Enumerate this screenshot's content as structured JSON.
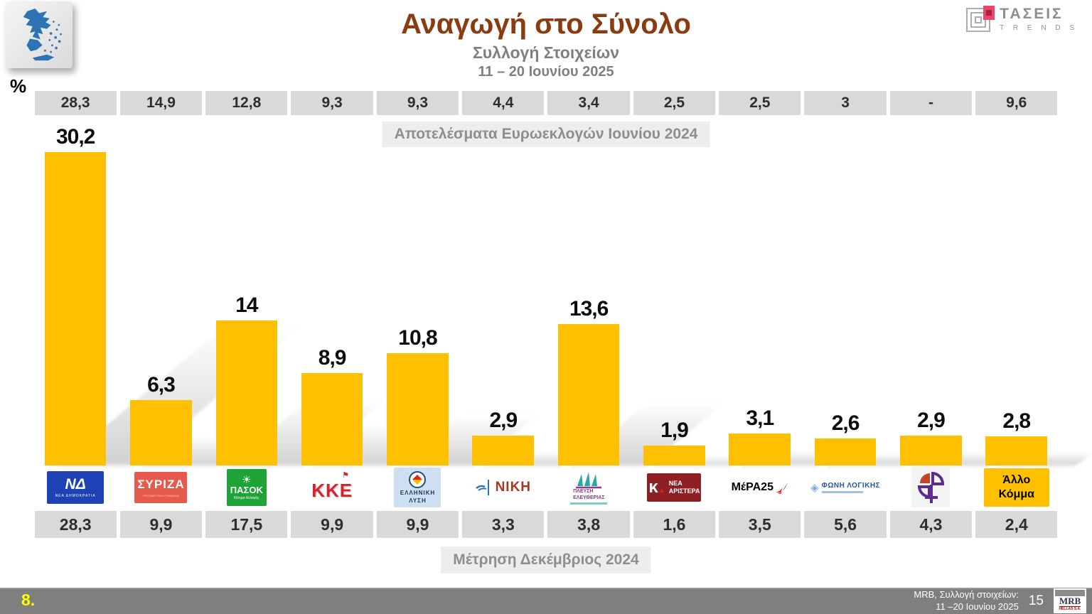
{
  "header": {
    "title": "Αναγωγή στο Σύνολο",
    "subtitle": "Συλλογή Στοιχείων",
    "date_range": "11 – 20 Ιουνίου 2025",
    "brand": {
      "name": "ΤΑΣΕΙΣ",
      "sub": "T R E N D S"
    }
  },
  "percent_label": "%",
  "annotations": {
    "top_row_label": "Αποτελέσματα Ευρωεκλογών Ιουνίου 2024",
    "bottom_row_label": "Μέτρηση Δεκέμβριος 2024"
  },
  "chart_data": {
    "type": "bar",
    "title": "Αναγωγή στο Σύνολο",
    "ylabel": "%",
    "ylim": [
      0,
      33
    ],
    "bar_color": "#FFC000",
    "legend_position": "none",
    "grid": false,
    "categories": [
      "ΝΕΑ ΔΗΜΟΚΡΑΤΙΑ",
      "ΣΥΡΙΖΑ",
      "ΠΑΣΟΚ",
      "ΚΚΕ",
      "ΕΛΛΗΝΙΚΗ ΛΥΣΗ",
      "ΝΙΚΗ",
      "ΠΛΕΥΣΗ ΕΛΕΥΘΕΡΙΑΣ",
      "ΝΕΑ ΑΡΙΣΤΕΡΑ",
      "ΜέΡΑ25",
      "ΦΩΝΗ ΛΟΓΙΚΗΣ",
      "ΚΙΝΗΜΑ ΔΗΜΟΚΡΑΤΙΑΣ",
      "Άλλο Κόμμα"
    ],
    "series": [
      {
        "name": "Αποτελέσματα Ευρωεκλογών Ιουνίου 2024",
        "values": [
          28.3,
          14.9,
          12.8,
          9.3,
          9.3,
          4.4,
          3.4,
          2.5,
          2.5,
          3,
          null,
          9.6
        ],
        "values_display": [
          "28,3",
          "14,9",
          "12,8",
          "9,3",
          "9,3",
          "4,4",
          "3,4",
          "2,5",
          "2,5",
          "3",
          "-",
          "9,6"
        ]
      },
      {
        "name": "Αναγωγή στο Σύνολο 11 – 20 Ιουνίου 2025",
        "values": [
          30.2,
          6.3,
          14,
          8.9,
          10.8,
          2.9,
          13.6,
          1.9,
          3.1,
          2.6,
          2.9,
          2.8
        ],
        "values_display": [
          "30,2",
          "6,3",
          "14",
          "8,9",
          "10,8",
          "2,9",
          "13,6",
          "1,9",
          "3,1",
          "2,6",
          "2,9",
          "2,8"
        ]
      },
      {
        "name": "Μέτρηση Δεκέμβριος 2024",
        "values": [
          28.3,
          9.9,
          17.5,
          9.9,
          9.9,
          3.3,
          3.8,
          1.6,
          3.5,
          5.6,
          4.3,
          2.4
        ],
        "values_display": [
          "28,3",
          "9,9",
          "17,5",
          "9,9",
          "9,9",
          "3,3",
          "3,8",
          "1,6",
          "3,5",
          "5,6",
          "4,3",
          "2,4"
        ]
      }
    ],
    "parties": [
      {
        "id": "nd",
        "logo_main": "ΝΔ",
        "logo_sub": "ΝΕΑ ΔΗΜΟΚΡΑΤΙΑ"
      },
      {
        "id": "syriza",
        "logo_main": "ΣΥΡΙΖΑ",
        "logo_sub": "ΠΡΟΟΔΕΥΤΙΚΗ ΣΥΜΜΑΧΙΑ"
      },
      {
        "id": "pasok",
        "logo_main": "ΠΑΣΟΚ",
        "logo_sub": "Κίνημα Αλλαγής"
      },
      {
        "id": "kke",
        "logo_main": "ΚΚΕ"
      },
      {
        "id": "elliniki-lysi",
        "logo_main": "ΕΛΛΗΝΙΚΗ",
        "logo_sub": "ΛΥΣΗ"
      },
      {
        "id": "niki",
        "logo_main": "ΝΙΚΗ"
      },
      {
        "id": "plefsi-eleftherias",
        "logo_main": "ΠΛΕΥΣΗ",
        "logo_sub": "ΕΛΕΥΘΕΡΙΑΣ"
      },
      {
        "id": "nea-aristera",
        "logo_main": "ΝΕΑ",
        "logo_sub": "ΑΡΙΣΤΕΡΑ"
      },
      {
        "id": "mera25",
        "logo_main": "ΜέΡΑ25"
      },
      {
        "id": "foni-logikis",
        "logo_main": "ΦΩΝΗ ΛΟΓΙΚΗΣ"
      },
      {
        "id": "kinima-dimokratias",
        "logo_main": ""
      },
      {
        "id": "allo-komma",
        "logo_main": "Άλλο",
        "logo_sub": "Κόμμα"
      }
    ]
  },
  "footer": {
    "slide_number": "8.",
    "source_line1": "MRB, Συλλογή στοιχείων:",
    "source_line2": "11 –20 Ιουνίου 2025",
    "page": "15",
    "logo_main": "MRB",
    "logo_sub": "HELLAS S.A."
  }
}
